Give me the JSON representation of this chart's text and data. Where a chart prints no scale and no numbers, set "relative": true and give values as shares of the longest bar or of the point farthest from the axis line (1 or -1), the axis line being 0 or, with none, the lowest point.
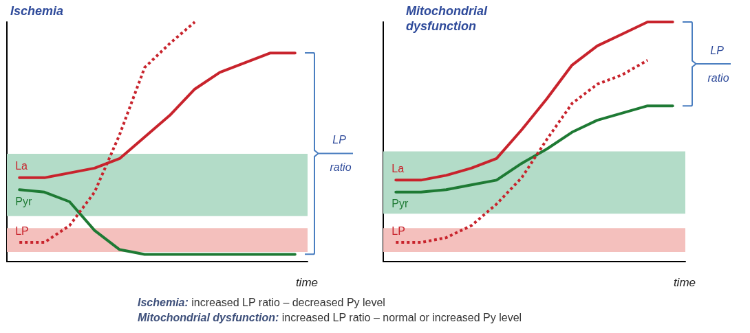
{
  "chart_data": [
    {
      "type": "line",
      "title": "Ischemia",
      "xlabel": "time",
      "relative": true,
      "grid": false,
      "legend": false,
      "marker": "none",
      "categories": [
        null,
        null,
        null,
        null,
        null,
        null,
        null,
        null,
        null,
        null,
        null,
        null
      ],
      "series": [
        {
          "name": "La",
          "color": "#c8232c",
          "line_style": "solid",
          "values": [
            0.35,
            0.35,
            0.37,
            0.39,
            0.43,
            0.52,
            0.61,
            0.72,
            0.79,
            0.83,
            0.87,
            0.87
          ]
        },
        {
          "name": "Pyr",
          "color": "#1e7a34",
          "line_style": "solid",
          "values": [
            0.3,
            0.29,
            0.25,
            0.13,
            0.05,
            0.03,
            0.03,
            0.03,
            0.03,
            0.03,
            0.03,
            0.03
          ]
        },
        {
          "name": "LP",
          "color": "#c8232c",
          "line_style": "dotted",
          "values": [
            0.08,
            0.08,
            0.15,
            0.29,
            0.53,
            0.81,
            0.91,
            1.0,
            null,
            null,
            null,
            null
          ]
        }
      ],
      "bands": [
        {
          "axis": "y",
          "from": 0.19,
          "to": 0.45,
          "color": "#b3dcc8"
        },
        {
          "axis": "y",
          "from": 0.04,
          "to": 0.14,
          "color": "#f4c0bd"
        }
      ],
      "annotations": [
        "LP ratio",
        "Ischemia: increased LP ratio – decreased Py level",
        "Mitochondrial dysfunction: increased LP ratio – normal or increased Py level"
      ]
    },
    {
      "type": "line",
      "title": "Mitochondrial dysfunction",
      "xlabel": "time",
      "relative": true,
      "grid": false,
      "legend": false,
      "marker": "none",
      "categories": [
        null,
        null,
        null,
        null,
        null,
        null,
        null,
        null,
        null,
        null,
        null,
        null
      ],
      "series": [
        {
          "name": "La",
          "color": "#c8232c",
          "line_style": "solid",
          "values": [
            0.34,
            0.34,
            0.36,
            0.39,
            0.43,
            0.55,
            0.68,
            0.82,
            0.9,
            0.95,
            1.0,
            1.0
          ]
        },
        {
          "name": "Pyr",
          "color": "#1e7a34",
          "line_style": "solid",
          "values": [
            0.29,
            0.29,
            0.3,
            0.32,
            0.34,
            0.41,
            0.47,
            0.54,
            0.59,
            0.62,
            0.65,
            0.65
          ]
        },
        {
          "name": "LP",
          "color": "#c8232c",
          "line_style": "dotted",
          "values": [
            0.08,
            0.08,
            0.1,
            0.15,
            0.24,
            0.35,
            0.51,
            0.66,
            0.74,
            0.78,
            0.84,
            null
          ]
        }
      ],
      "bands": [
        {
          "axis": "y",
          "from": 0.2,
          "to": 0.46,
          "color": "#b3dcc8"
        },
        {
          "axis": "y",
          "from": 0.04,
          "to": 0.14,
          "color": "#f4c0bd"
        }
      ],
      "annotations": [
        "LP ratio"
      ]
    }
  ]
}
